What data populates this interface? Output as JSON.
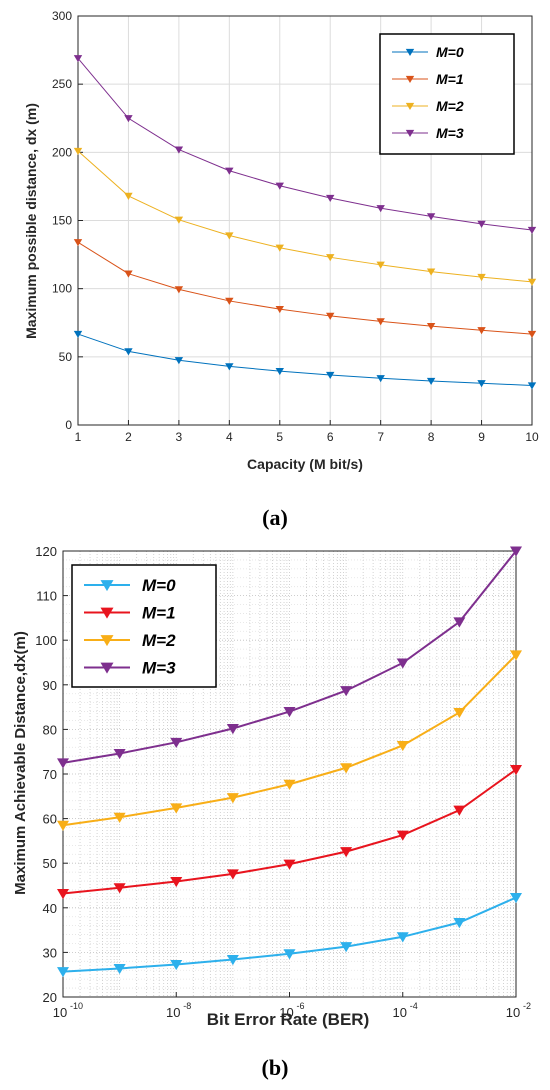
{
  "chart_data": [
    {
      "type": "line",
      "caption": "(a)",
      "xlabel": "Capacity (M bit/s)",
      "ylabel": "Maximum possible distance,  dx (m)",
      "xlim": [
        1,
        10
      ],
      "ylim": [
        0,
        300
      ],
      "xticks": [
        "1",
        "2",
        "3",
        "4",
        "5",
        "6",
        "7",
        "8",
        "9",
        "10"
      ],
      "yticks": [
        "0",
        "50",
        "100",
        "150",
        "200",
        "250",
        "300"
      ],
      "grid": true,
      "legend_position": "top-right",
      "x": [
        1,
        2,
        3,
        4,
        5,
        6,
        7,
        8,
        9,
        10
      ],
      "series": [
        {
          "name": "M=0",
          "color": "#0072BD",
          "values": [
            66.7,
            54.0,
            47.5,
            43.0,
            39.5,
            36.7,
            34.3,
            32.3,
            30.6,
            29.0
          ]
        },
        {
          "name": "M=1",
          "color": "#D95319",
          "values": [
            134.0,
            111.0,
            99.5,
            91.0,
            85.0,
            80.0,
            76.0,
            72.5,
            69.5,
            66.7
          ]
        },
        {
          "name": "M=2",
          "color": "#EDB120",
          "values": [
            201.0,
            168.0,
            150.5,
            139.0,
            130.0,
            123.0,
            117.5,
            112.5,
            108.5,
            105.0
          ]
        },
        {
          "name": "M=3",
          "color": "#7E2F8E",
          "values": [
            269.0,
            225.0,
            202.0,
            186.5,
            175.5,
            166.5,
            159.0,
            153.0,
            147.5,
            143.0
          ]
        }
      ]
    },
    {
      "type": "line",
      "caption": "(b)",
      "xlabel": "Bit Error Rate (BER)",
      "ylabel": "Maximum Achievable Distance,dx(m)",
      "xscale": "log",
      "xlim": [
        1e-10,
        0.01
      ],
      "ylim": [
        20,
        120
      ],
      "xticks": [
        {
          "base": "10",
          "exp": "-10"
        },
        {
          "base": "10",
          "exp": "-8"
        },
        {
          "base": "10",
          "exp": "-6"
        },
        {
          "base": "10",
          "exp": "-4"
        },
        {
          "base": "10",
          "exp": "-2"
        }
      ],
      "yticks": [
        "20",
        "30",
        "40",
        "50",
        "60",
        "70",
        "80",
        "90",
        "100",
        "110",
        "120"
      ],
      "grid": true,
      "legend_position": "top-left",
      "x": [
        1e-10,
        1e-09,
        1e-08,
        1e-07,
        1e-06,
        1e-05,
        0.0001,
        0.001,
        0.01
      ],
      "series": [
        {
          "name": "M=0",
          "color": "#2DB0EC",
          "values": [
            25.7,
            26.4,
            27.3,
            28.4,
            29.7,
            31.3,
            33.5,
            36.7,
            42.3
          ]
        },
        {
          "name": "M=1",
          "color": "#E8141E",
          "values": [
            43.2,
            44.5,
            45.9,
            47.6,
            49.8,
            52.6,
            56.3,
            61.9,
            71.0
          ]
        },
        {
          "name": "M=2",
          "color": "#F8AE17",
          "values": [
            58.5,
            60.3,
            62.4,
            64.7,
            67.7,
            71.4,
            76.4,
            83.8,
            96.7
          ]
        },
        {
          "name": "M=3",
          "color": "#7E2F8E",
          "values": [
            72.5,
            74.6,
            77.1,
            80.2,
            84.0,
            88.7,
            94.9,
            104.1,
            120.0
          ]
        }
      ]
    }
  ]
}
